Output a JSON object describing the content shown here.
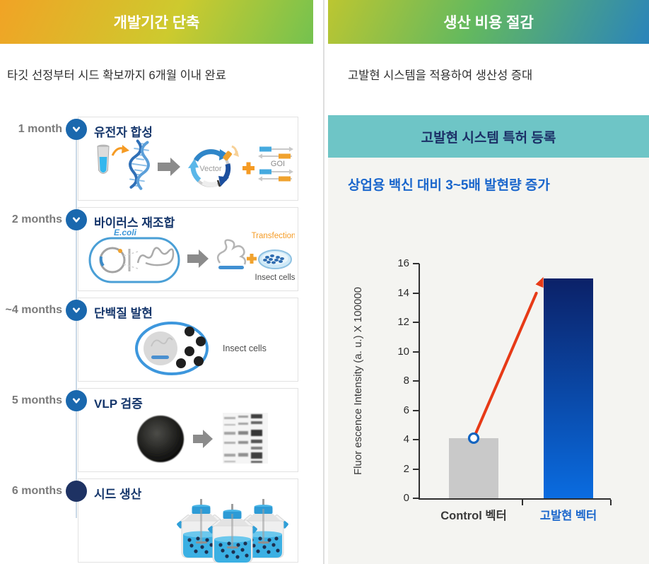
{
  "left": {
    "header": "개발기간 단축",
    "subtitle": "타깃 선정부터 시드 확보까지 6개월 이내 완료",
    "steps": [
      {
        "time": "1 month",
        "title": "유전자 합성",
        "icon": "chevron-down-circle-icon",
        "labels": {
          "vector": "Vector",
          "goi": "GOI"
        }
      },
      {
        "time": "2 months",
        "title": "바이러스 재조합",
        "icon": "chevron-down-circle-icon",
        "labels": {
          "ecoli": "E.coli",
          "transfection": "Transfection",
          "insect_cells": "Insect cells"
        }
      },
      {
        "time": "~4 months",
        "title": "단백질 발현",
        "icon": "chevron-down-circle-icon",
        "labels": {
          "insect_cells": "Insect cells"
        }
      },
      {
        "time": "5 months",
        "title": "VLP 검증",
        "icon": "chevron-down-circle-icon"
      },
      {
        "time": "6 months",
        "title": "시드 생산",
        "icon": "filled-circle-icon"
      }
    ]
  },
  "right": {
    "header": "생산 비용 절감",
    "subtitle": "고발현 시스템을 적용하여 생산성 증대",
    "banner": "고발현 시스템 특허 등록",
    "highlight": "상업용 백신 대비 3~5배 발현량 증가"
  },
  "chart_data": {
    "type": "bar",
    "title": "상업용 백신 대비 3~5배 발현량 증가",
    "categories": [
      "Control 벡터",
      "고발현 벡터"
    ],
    "values": [
      4.1,
      15
    ],
    "xlabel": "",
    "ylabel": "Fluor escence Intensity (a. u.) X 100000",
    "ylim": [
      0,
      16
    ],
    "ytick_step": 2,
    "grid": false,
    "legend": "none",
    "bar_colors": [
      {
        "type": "solid",
        "color": "#c9c9c9"
      },
      {
        "type": "gradient",
        "top": "#0b2168",
        "bottom": "#0a6ce0"
      }
    ],
    "category_label_colors": [
      "#3a3a3a",
      "#1a66cc"
    ],
    "annotations": [
      "red arrow from Control 벡터 bar top to 고발현 벡터 bar top",
      "circle marker on top of Control 벡터 bar"
    ],
    "annotation_colors": {
      "arrow": "#e73a17",
      "marker_stroke": "#1565c0",
      "marker_fill": "#ffffff"
    }
  },
  "colors": {
    "header_left_gradient": [
      "#f1a325",
      "#cdca2e",
      "#74c24f"
    ],
    "header_right_gradient": [
      "#bcc631",
      "#64b95e",
      "#2a84bb"
    ],
    "banner_teal": "#6ec5c6",
    "panel_gray": "#f4f4f1",
    "navy_text": "#15366b",
    "blue_accent": "#1a66cc",
    "step_icon_blue": "#1a68ae",
    "step_icon_navy": "#1e3263"
  }
}
